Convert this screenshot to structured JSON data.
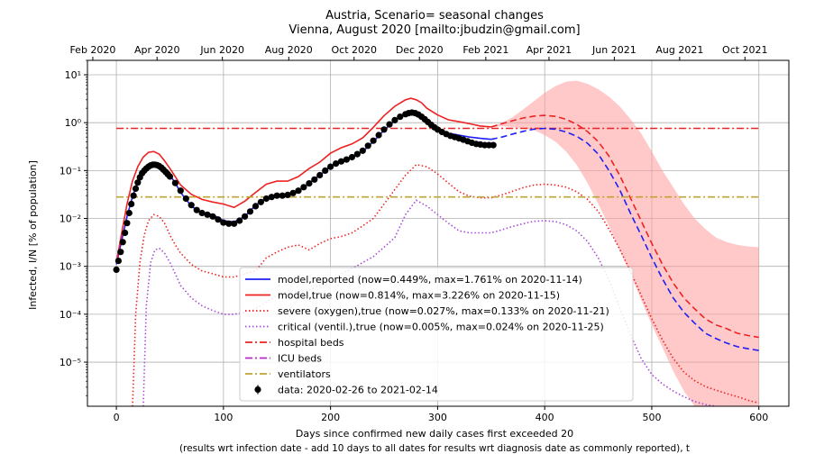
{
  "chart_data": {
    "type": "line",
    "title": "Austria, Scenario= seasonal changes",
    "subtitle": "Vienna, August 2020 [mailto:jbudzin@gmail.com]",
    "xlabel": "Days since confirmed new daily cases first exceeded 20",
    "xlabel2": "(results wrt infection date - add 10 days to all dates for results wrt diagnosis date as commonly reported), t",
    "ylabel": "Infected, I/N [% of population]",
    "x_scale": "linear",
    "y_scale": "log",
    "xlim": [
      -27,
      628
    ],
    "ylim": [
      1.2e-06,
      20
    ],
    "grid": true,
    "legend_position": "lower-center",
    "x_ticks": [
      0,
      100,
      200,
      300,
      400,
      500,
      600
    ],
    "y_ticks": [
      {
        "value": 10,
        "label": "10¹"
      },
      {
        "value": 1,
        "label": "10⁰"
      },
      {
        "value": 0.1,
        "label": "10⁻¹"
      },
      {
        "value": 0.01,
        "label": "10⁻²"
      },
      {
        "value": 0.001,
        "label": "10⁻³"
      },
      {
        "value": 0.0001,
        "label": "10⁻⁴"
      },
      {
        "value": 1e-05,
        "label": "10⁻⁵"
      }
    ],
    "top_axis_ticks": [
      {
        "x": -22,
        "label": "Feb 2020"
      },
      {
        "x": 38,
        "label": "Apr 2020"
      },
      {
        "x": 99,
        "label": "Jun 2020"
      },
      {
        "x": 161,
        "label": "Aug 2020"
      },
      {
        "x": 222,
        "label": "Oct 2020"
      },
      {
        "x": 283,
        "label": "Dec 2020"
      },
      {
        "x": 345,
        "label": "Feb 2021"
      },
      {
        "x": 404,
        "label": "Apr 2021"
      },
      {
        "x": 465,
        "label": "Jun 2021"
      },
      {
        "x": 526,
        "label": "Aug 2021"
      },
      {
        "x": 587,
        "label": "Oct 2021"
      }
    ],
    "series": [
      {
        "name": "model,reported (now=0.449%, max=1.761% on 2020-11-14)",
        "color": "#1f1ff5",
        "style": "solid",
        "x": [
          0,
          5,
          10,
          15,
          20,
          25,
          30,
          35,
          40,
          45,
          50,
          55,
          60,
          70,
          80,
          90,
          100,
          110,
          120,
          130,
          140,
          150,
          160,
          170,
          180,
          190,
          200,
          210,
          220,
          230,
          240,
          250,
          260,
          270,
          275,
          280,
          285,
          290,
          300,
          310,
          320,
          330,
          340,
          350
        ],
        "y": [
          0.0011,
          0.0035,
          0.011,
          0.028,
          0.058,
          0.092,
          0.12,
          0.135,
          0.132,
          0.11,
          0.08,
          0.055,
          0.035,
          0.018,
          0.013,
          0.012,
          0.009,
          0.0085,
          0.011,
          0.019,
          0.027,
          0.03,
          0.03,
          0.038,
          0.055,
          0.08,
          0.12,
          0.16,
          0.19,
          0.25,
          0.4,
          0.7,
          1.1,
          1.55,
          1.7,
          1.6,
          1.35,
          1.05,
          0.75,
          0.6,
          0.55,
          0.5,
          0.47,
          0.449
        ]
      },
      {
        "name": "model,true (now=0.814%, max=3.226% on 2020-11-15)",
        "color": "#ee2222",
        "style": "solid",
        "x": [
          0,
          5,
          10,
          15,
          20,
          25,
          30,
          35,
          40,
          45,
          50,
          55,
          60,
          70,
          80,
          90,
          100,
          110,
          120,
          130,
          140,
          150,
          160,
          170,
          180,
          190,
          200,
          210,
          220,
          230,
          240,
          250,
          260,
          270,
          275,
          280,
          285,
          290,
          300,
          310,
          320,
          330,
          340,
          350
        ],
        "y": [
          0.0012,
          0.005,
          0.02,
          0.06,
          0.12,
          0.19,
          0.24,
          0.25,
          0.22,
          0.16,
          0.11,
          0.075,
          0.05,
          0.032,
          0.025,
          0.022,
          0.02,
          0.017,
          0.023,
          0.035,
          0.052,
          0.06,
          0.06,
          0.075,
          0.11,
          0.15,
          0.23,
          0.3,
          0.36,
          0.48,
          0.8,
          1.4,
          2.2,
          3.0,
          3.226,
          3.0,
          2.6,
          2.0,
          1.45,
          1.15,
          1.05,
          0.95,
          0.85,
          0.814
        ]
      },
      {
        "name": "severe (oxygen),true (now=0.027%, max=0.133% on 2020-11-21)",
        "color": "#ee2222",
        "style": "dotted",
        "x": [
          15,
          18,
          22,
          26,
          30,
          35,
          40,
          45,
          50,
          55,
          60,
          70,
          80,
          90,
          100,
          110,
          120,
          130,
          140,
          150,
          160,
          170,
          180,
          190,
          200,
          210,
          220,
          230,
          240,
          250,
          260,
          270,
          280,
          290,
          300,
          310,
          320,
          330,
          340,
          350,
          360,
          370,
          380,
          390,
          400,
          410,
          420,
          430,
          440,
          450,
          460,
          470,
          480,
          490,
          500,
          510,
          520,
          530,
          540,
          550,
          560,
          570,
          580,
          590,
          600
        ],
        "y": [
          1e-06,
          0.0001,
          0.0012,
          0.0045,
          0.009,
          0.012,
          0.011,
          0.008,
          0.0045,
          0.0028,
          0.0019,
          0.0011,
          0.0008,
          0.0007,
          0.0006,
          0.0006,
          0.0007,
          0.0008,
          0.0015,
          0.002,
          0.0025,
          0.0028,
          0.0022,
          0.003,
          0.0038,
          0.0042,
          0.005,
          0.007,
          0.01,
          0.02,
          0.04,
          0.08,
          0.133,
          0.12,
          0.085,
          0.055,
          0.036,
          0.029,
          0.027,
          0.027,
          0.031,
          0.037,
          0.044,
          0.05,
          0.052,
          0.05,
          0.045,
          0.036,
          0.025,
          0.014,
          0.006,
          0.0023,
          0.0008,
          0.00025,
          8e-05,
          2.9e-05,
          1.2e-05,
          6.2e-06,
          4.1e-06,
          3.1e-06,
          2.6e-06,
          2.2e-06,
          1.9e-06,
          1.6e-06,
          1.4e-06
        ]
      },
      {
        "name": "critical (ventil.),true (now=0.005%, max=0.024% on 2020-11-25)",
        "color": "#a64bd6",
        "style": "dotted",
        "x": [
          25,
          28,
          32,
          36,
          40,
          45,
          50,
          55,
          60,
          70,
          80,
          90,
          100,
          110,
          120,
          130,
          140,
          150,
          160,
          170,
          180,
          190,
          200,
          210,
          220,
          230,
          240,
          250,
          260,
          270,
          280,
          290,
          300,
          310,
          320,
          330,
          340,
          350,
          360,
          370,
          380,
          390,
          400,
          410,
          420,
          430,
          440,
          450,
          460,
          470,
          480,
          490,
          500,
          510,
          520,
          530,
          540,
          550,
          560,
          570,
          580
        ],
        "y": [
          1e-06,
          0.00015,
          0.0012,
          0.0022,
          0.0024,
          0.0019,
          0.0012,
          0.0007,
          0.0004,
          0.00022,
          0.00015,
          0.00012,
          0.0001,
          0.0001,
          0.00011,
          0.00013,
          0.00018,
          0.00025,
          0.0003,
          0.0003,
          0.00032,
          0.0004,
          0.0005,
          0.0007,
          0.0009,
          0.0012,
          0.0016,
          0.0025,
          0.004,
          0.012,
          0.024,
          0.018,
          0.012,
          0.008,
          0.0055,
          0.005,
          0.005,
          0.005,
          0.0058,
          0.0068,
          0.0078,
          0.0087,
          0.009,
          0.0086,
          0.0074,
          0.0055,
          0.0033,
          0.0015,
          0.00052,
          0.00014,
          3.8e-05,
          1.2e-05,
          5.5e-06,
          3.5e-06,
          2.5e-06,
          1.9e-06,
          1.5e-06,
          1.3e-06,
          1.2e-06,
          1.1e-06,
          1e-06
        ]
      },
      {
        "name": "hospital beds",
        "color": "#ee2222",
        "style": "dashdot",
        "x": [
          0,
          600
        ],
        "y": [
          0.76,
          0.76
        ]
      },
      {
        "name": "ICU beds",
        "color": "#b52ec9",
        "style": "dashdot",
        "x": [],
        "y": []
      },
      {
        "name": "ventilators",
        "color": "#bfa332",
        "style": "dashdot",
        "x": [
          0,
          600
        ],
        "y": [
          0.028,
          0.028
        ]
      }
    ],
    "projection": [
      {
        "of": "model,reported",
        "color": "#1f1ff5",
        "style": "dashed",
        "x": [
          350,
          360,
          370,
          380,
          390,
          400,
          410,
          420,
          430,
          440,
          450,
          460,
          470,
          480,
          490,
          500,
          510,
          520,
          530,
          540,
          550,
          560,
          570,
          580,
          590,
          600
        ],
        "y": [
          0.449,
          0.5,
          0.58,
          0.66,
          0.73,
          0.76,
          0.73,
          0.64,
          0.52,
          0.37,
          0.22,
          0.1,
          0.04,
          0.013,
          0.0045,
          0.0015,
          0.00055,
          0.00022,
          0.00011,
          6.5e-05,
          4e-05,
          3.1e-05,
          2.5e-05,
          2.1e-05,
          1.9e-05,
          1.75e-05
        ]
      },
      {
        "of": "model,true",
        "color": "#ee2222",
        "style": "dashed",
        "x": [
          350,
          360,
          370,
          380,
          390,
          400,
          410,
          420,
          430,
          440,
          450,
          460,
          470,
          480,
          490,
          500,
          510,
          520,
          530,
          540,
          550,
          560,
          570,
          580,
          590,
          600
        ],
        "y": [
          0.814,
          0.95,
          1.1,
          1.25,
          1.37,
          1.42,
          1.35,
          1.18,
          0.92,
          0.65,
          0.4,
          0.2,
          0.08,
          0.027,
          0.009,
          0.003,
          0.0011,
          0.00045,
          0.00022,
          0.00013,
          8e-05,
          6e-05,
          5e-05,
          4e-05,
          3.6e-05,
          3.3e-05
        ]
      }
    ],
    "uncertainty_band": {
      "color": "#ff9d9d",
      "x": [
        350,
        360,
        370,
        380,
        390,
        400,
        410,
        420,
        430,
        440,
        450,
        460,
        470,
        480,
        490,
        500,
        510,
        520,
        530,
        540,
        550,
        560,
        570,
        580,
        590,
        600
      ],
      "upper": [
        0.82,
        1.0,
        1.3,
        1.9,
        2.8,
        4.2,
        5.8,
        7.2,
        7.5,
        6.5,
        5.0,
        3.5,
        2.2,
        1.2,
        0.6,
        0.25,
        0.1,
        0.045,
        0.02,
        0.01,
        0.006,
        0.004,
        0.0032,
        0.0028,
        0.0026,
        0.0025
      ],
      "lower": [
        0.8,
        0.85,
        0.8,
        0.75,
        0.7,
        0.55,
        0.4,
        0.25,
        0.13,
        0.055,
        0.02,
        0.007,
        0.0022,
        0.0007,
        0.0002,
        6e-05,
        2e-05,
        6.5e-06,
        2.5e-06,
        1.2e-06,
        1.2e-06,
        1.2e-06,
        1.2e-06,
        1.2e-06,
        1.2e-06,
        1.2e-06
      ]
    },
    "observed": {
      "name": "data: 2020-02-26 to 2021-02-14",
      "color": "#000000",
      "x": [
        0,
        2,
        4,
        6,
        8,
        10,
        12,
        14,
        16,
        18,
        20,
        22,
        24,
        26,
        28,
        30,
        32,
        34,
        36,
        38,
        40,
        42,
        44,
        46,
        48,
        50,
        55,
        60,
        65,
        70,
        75,
        80,
        85,
        90,
        95,
        100,
        105,
        110,
        115,
        120,
        125,
        130,
        135,
        140,
        145,
        150,
        155,
        160,
        165,
        170,
        175,
        180,
        185,
        190,
        195,
        200,
        205,
        210,
        215,
        220,
        225,
        230,
        235,
        240,
        245,
        250,
        255,
        260,
        265,
        270,
        273,
        276,
        279,
        282,
        285,
        288,
        291,
        294,
        297,
        300,
        304,
        308,
        312,
        316,
        320,
        324,
        328,
        332,
        336,
        340,
        344,
        348,
        352
      ],
      "y": [
        0.00085,
        0.0013,
        0.002,
        0.0032,
        0.005,
        0.008,
        0.013,
        0.02,
        0.03,
        0.042,
        0.056,
        0.072,
        0.088,
        0.1,
        0.11,
        0.12,
        0.128,
        0.132,
        0.133,
        0.13,
        0.124,
        0.115,
        0.104,
        0.094,
        0.084,
        0.075,
        0.055,
        0.038,
        0.026,
        0.019,
        0.015,
        0.013,
        0.012,
        0.011,
        0.0095,
        0.0082,
        0.0078,
        0.0078,
        0.009,
        0.011,
        0.014,
        0.018,
        0.022,
        0.026,
        0.028,
        0.03,
        0.03,
        0.031,
        0.034,
        0.038,
        0.045,
        0.054,
        0.065,
        0.08,
        0.1,
        0.12,
        0.14,
        0.155,
        0.17,
        0.19,
        0.22,
        0.26,
        0.33,
        0.42,
        0.55,
        0.72,
        0.92,
        1.13,
        1.33,
        1.5,
        1.58,
        1.62,
        1.58,
        1.48,
        1.33,
        1.18,
        1.03,
        0.9,
        0.8,
        0.72,
        0.64,
        0.58,
        0.53,
        0.5,
        0.47,
        0.44,
        0.41,
        0.38,
        0.36,
        0.35,
        0.34,
        0.34,
        0.34
      ]
    }
  }
}
